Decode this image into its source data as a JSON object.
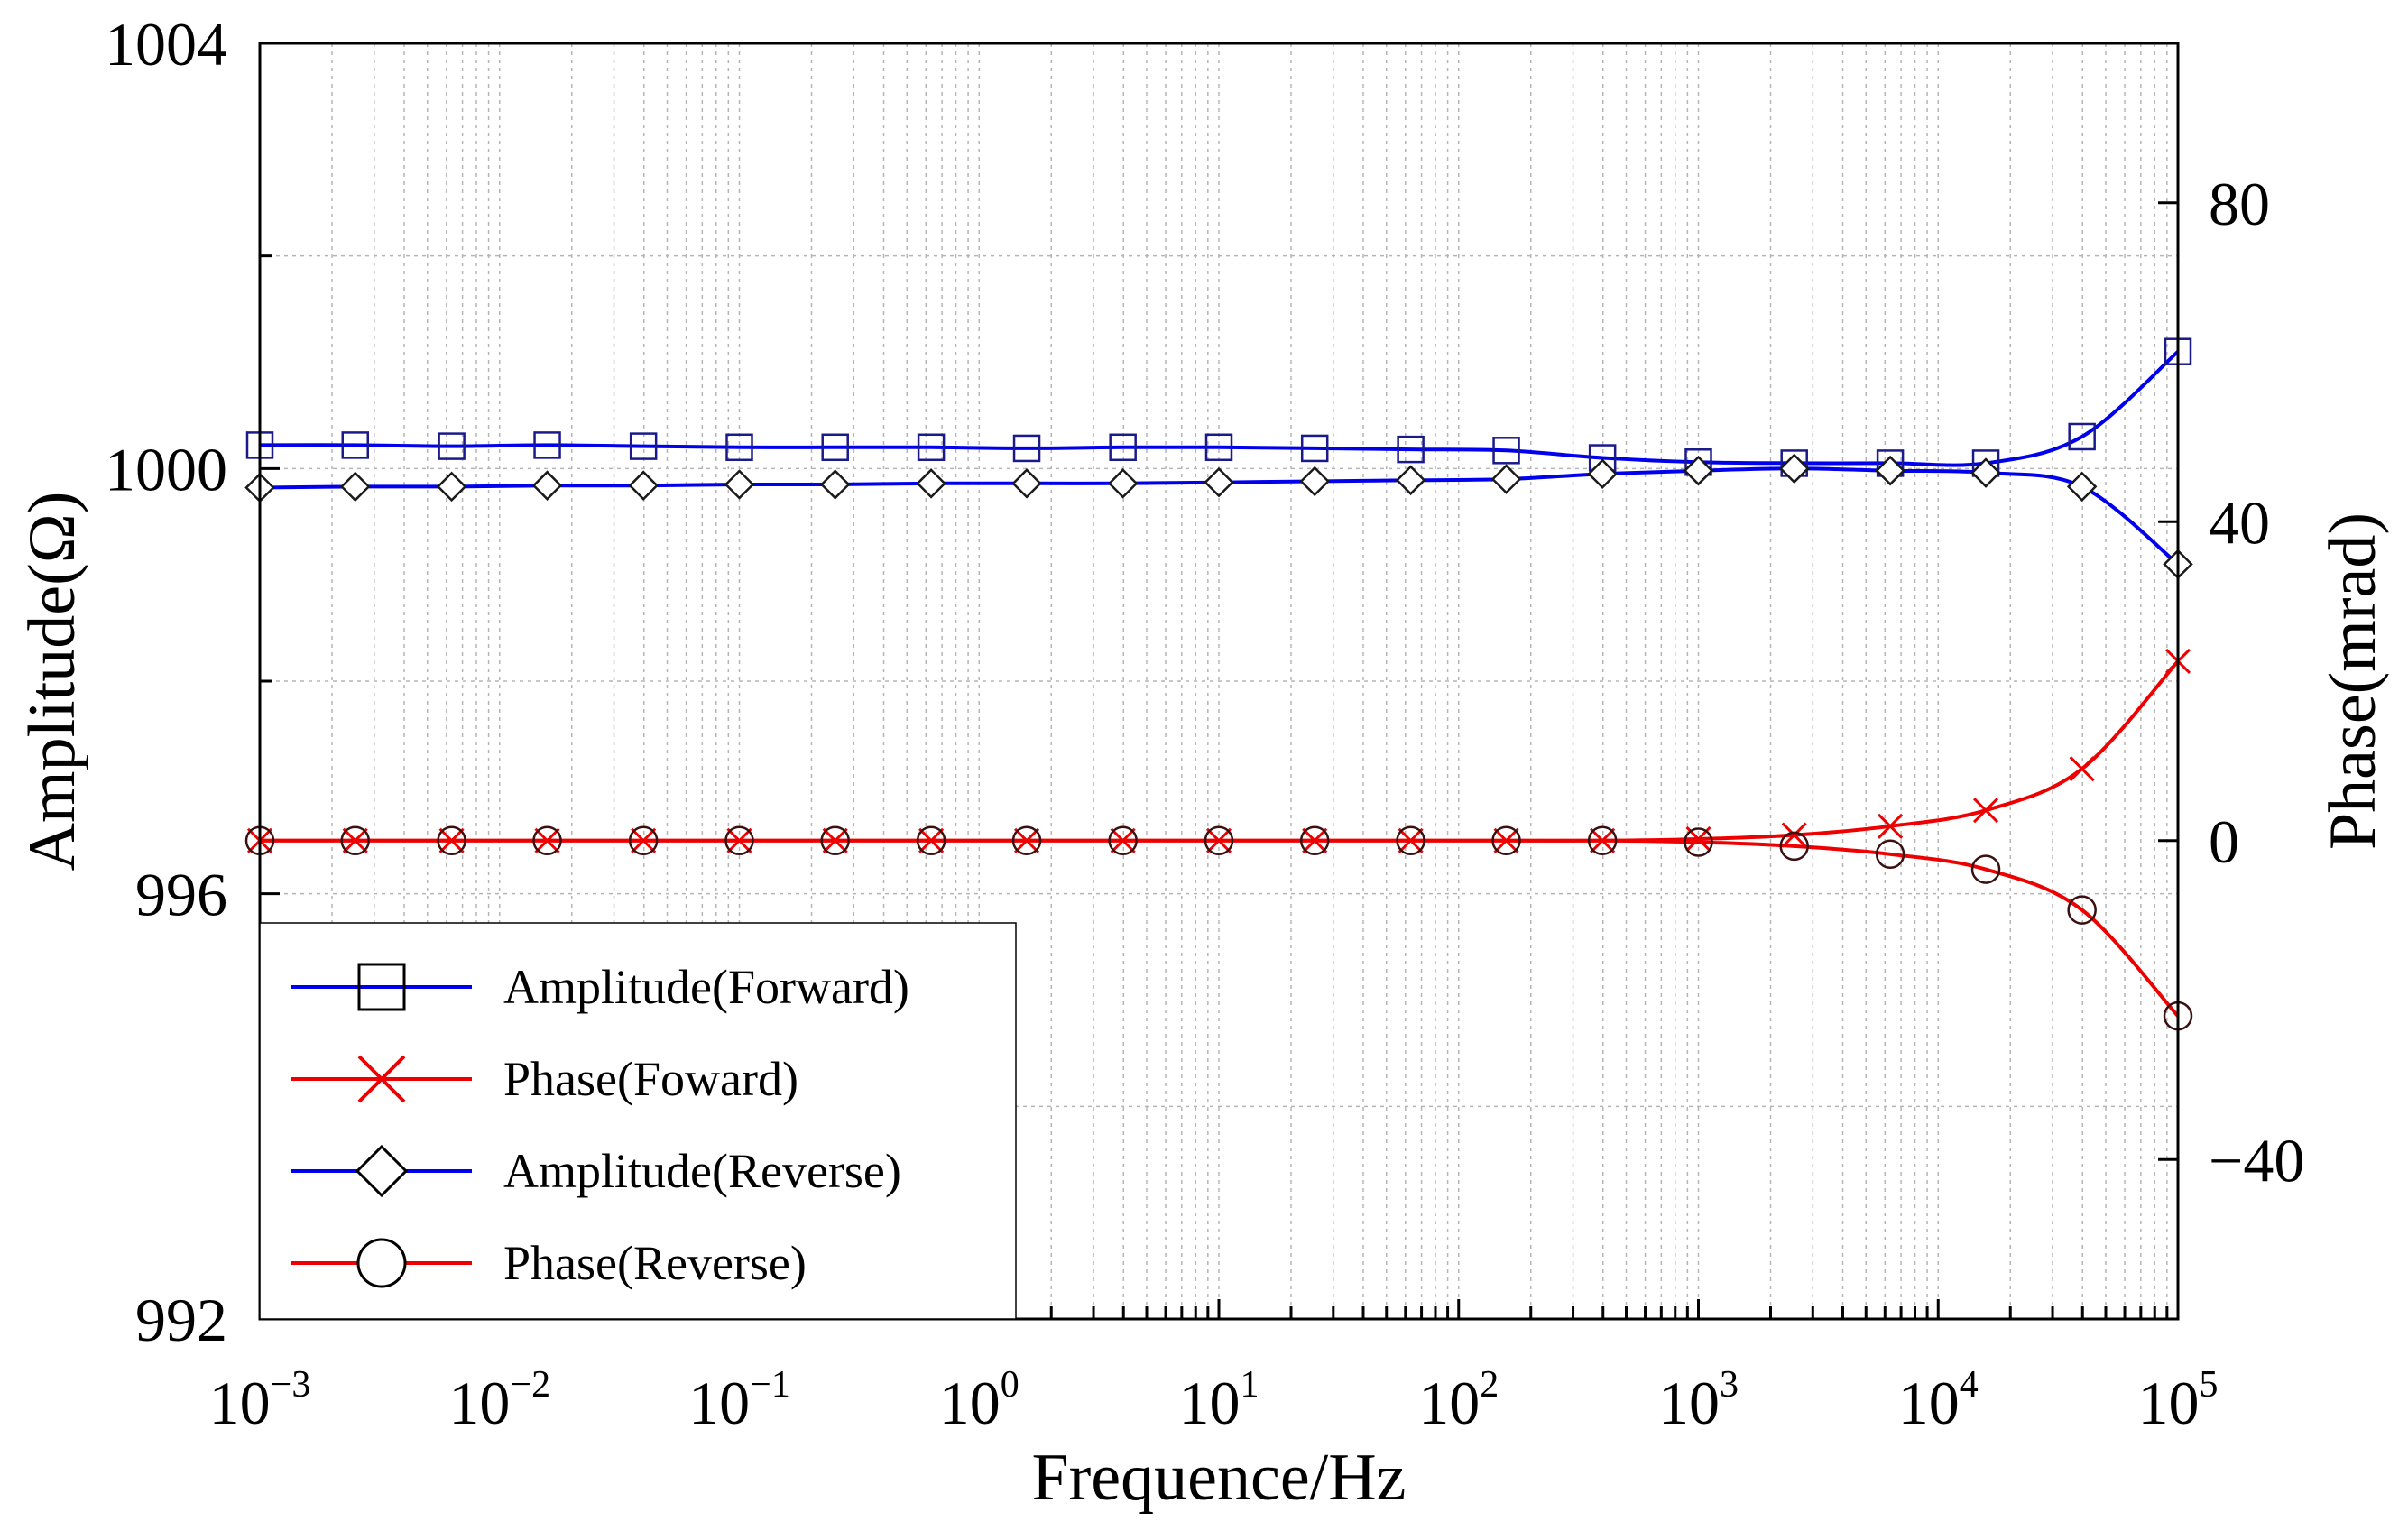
{
  "chart_data": {
    "type": "line",
    "title": "",
    "xlabel": "Frequence/Hz",
    "ylabel_left": "Amplitude(Ω)",
    "ylabel_right": "Phase(mrad)",
    "x_scale": "log",
    "xlim": [
      0.001,
      100000
    ],
    "ylim_left": [
      992,
      1004
    ],
    "ylim_right": [
      -60,
      100
    ],
    "grid": true,
    "legend_position": "bottom-left",
    "x_ticks": [
      {
        "base": "10",
        "exp": "−3"
      },
      {
        "base": "10",
        "exp": "−2"
      },
      {
        "base": "10",
        "exp": "−1"
      },
      {
        "base": "10",
        "exp": "0"
      },
      {
        "base": "10",
        "exp": "1"
      },
      {
        "base": "10",
        "exp": "2"
      },
      {
        "base": "10",
        "exp": "3"
      },
      {
        "base": "10",
        "exp": "4"
      },
      {
        "base": "10",
        "exp": "5"
      }
    ],
    "y_left_ticks": [
      "992",
      "996",
      "1000",
      "1004"
    ],
    "y_right_ticks": [
      "−40",
      "0",
      "40",
      "80"
    ],
    "series": [
      {
        "name": "Amplitude(Forward)",
        "axis": "left",
        "color": "#0000ee",
        "marker": "square",
        "x": [
          0.001,
          0.0025,
          0.00631,
          0.0158,
          0.0398,
          0.1,
          0.251,
          0.631,
          1.58,
          3.98,
          10,
          25.1,
          63.1,
          158,
          398,
          1000,
          2510,
          6310,
          15800,
          39800,
          100000
        ],
        "y": [
          1000.22,
          1000.22,
          1000.21,
          1000.22,
          1000.21,
          1000.2,
          1000.2,
          1000.2,
          1000.19,
          1000.2,
          1000.2,
          1000.19,
          1000.18,
          1000.17,
          1000.1,
          1000.06,
          1000.05,
          1000.05,
          1000.05,
          1000.3,
          1001.1
        ]
      },
      {
        "name": "Phase(Foward)",
        "axis": "right",
        "color": "#ee0000",
        "marker": "x",
        "x": [
          0.001,
          0.0025,
          0.00631,
          0.0158,
          0.0398,
          0.1,
          0.251,
          0.631,
          1.58,
          3.98,
          10,
          25.1,
          63.1,
          158,
          398,
          1000,
          2510,
          6310,
          15800,
          39800,
          100000
        ],
        "y": [
          0,
          0,
          0,
          0,
          0,
          0,
          0,
          0,
          0,
          0,
          0,
          0,
          0,
          0,
          0,
          0.2,
          0.7,
          1.8,
          3.8,
          9,
          22.5
        ]
      },
      {
        "name": "Amplitude(Reverse)",
        "axis": "left",
        "color": "#0000ee",
        "marker": "diamond",
        "x": [
          0.001,
          0.0025,
          0.00631,
          0.0158,
          0.0398,
          0.1,
          0.251,
          0.631,
          1.58,
          3.98,
          10,
          25.1,
          63.1,
          158,
          398,
          1000,
          2510,
          6310,
          15800,
          39800,
          100000
        ],
        "y": [
          999.82,
          999.83,
          999.83,
          999.84,
          999.84,
          999.85,
          999.85,
          999.86,
          999.86,
          999.86,
          999.87,
          999.88,
          999.89,
          999.9,
          999.95,
          999.98,
          1000.0,
          999.98,
          999.96,
          999.83,
          999.1
        ]
      },
      {
        "name": "Phase(Reverse)",
        "axis": "right",
        "color": "#ee0000",
        "marker": "circle",
        "x": [
          0.001,
          0.0025,
          0.00631,
          0.0158,
          0.0398,
          0.1,
          0.251,
          0.631,
          1.58,
          3.98,
          10,
          25.1,
          63.1,
          158,
          398,
          1000,
          2510,
          6310,
          15800,
          39800,
          100000
        ],
        "y": [
          0,
          0,
          0,
          0,
          0,
          0,
          0,
          0,
          0,
          0,
          0,
          0,
          0,
          0,
          0,
          -0.2,
          -0.7,
          -1.7,
          -3.6,
          -8.7,
          -22
        ]
      }
    ]
  }
}
